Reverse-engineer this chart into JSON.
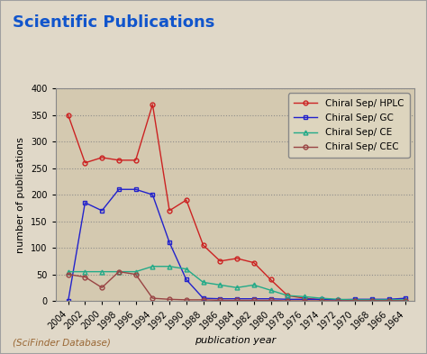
{
  "title": "Scientific Publications",
  "xlabel": "publication year",
  "ylabel": "number of publications",
  "footnote": "(SciFinder Database)",
  "background_color": "#d4c9b0",
  "outer_bg": "#e0d8c8",
  "border_color": "#a0a0a0",
  "ylim": [
    0,
    400
  ],
  "yticks": [
    0,
    50,
    100,
    150,
    200,
    250,
    300,
    350,
    400
  ],
  "years": [
    2004,
    2002,
    2000,
    1998,
    1996,
    1994,
    1992,
    1990,
    1988,
    1986,
    1984,
    1982,
    1980,
    1978,
    1976,
    1974,
    1972,
    1970,
    1968,
    1966,
    1964
  ],
  "hplc": [
    350,
    260,
    270,
    265,
    265,
    370,
    170,
    190,
    105,
    75,
    80,
    72,
    40,
    10,
    5,
    2,
    2,
    1,
    1,
    1,
    0
  ],
  "gc": [
    0,
    185,
    170,
    210,
    210,
    200,
    110,
    40,
    5,
    4,
    4,
    4,
    4,
    3,
    3,
    3,
    2,
    3,
    3,
    3,
    5
  ],
  "ce": [
    55,
    55,
    55,
    55,
    55,
    65,
    65,
    60,
    35,
    30,
    25,
    30,
    20,
    10,
    8,
    5,
    3,
    2,
    2,
    2,
    2
  ],
  "cec": [
    50,
    45,
    25,
    55,
    50,
    5,
    3,
    2,
    2,
    1,
    1,
    1,
    1,
    0,
    0,
    0,
    0,
    0,
    0,
    0,
    0
  ],
  "hplc_color": "#cc2222",
  "gc_color": "#2222cc",
  "ce_color": "#22aa88",
  "cec_color": "#994444",
  "legend_labels": [
    "Chiral Sep/ HPLC",
    "Chiral Sep/ GC",
    "Chiral Sep/ CE",
    "Chiral Sep/ CEC"
  ],
  "title_color": "#1155cc",
  "footnote_color": "#996633",
  "title_fontsize": 13,
  "axis_label_fontsize": 8,
  "tick_fontsize": 7,
  "legend_fontsize": 7.5
}
